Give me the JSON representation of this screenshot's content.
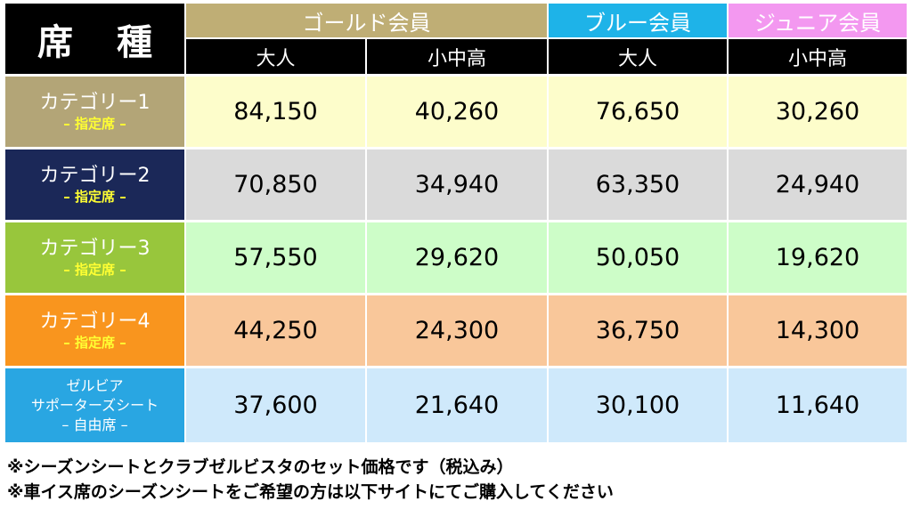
{
  "header": {
    "seat_label_1": "席",
    "seat_label_2": "種",
    "groups": [
      {
        "label": "ゴールド会員",
        "color": "#bfae75"
      },
      {
        "label": "ブルー会員",
        "color": "#1eb3e8"
      },
      {
        "label": "ジュニア会員",
        "color": "#f398f0"
      }
    ],
    "subheaders": [
      "大人",
      "小中高",
      "大人",
      "小中高"
    ]
  },
  "rows": [
    {
      "name": "カテゴリー1",
      "sub": "– 指定席 –",
      "cat_color": "#b3a577",
      "bg": "#fdfdcb",
      "values": [
        "84,150",
        "40,260",
        "76,650",
        "30,260"
      ]
    },
    {
      "name": "カテゴリー2",
      "sub": "– 指定席 –",
      "cat_color": "#1b2858",
      "bg": "#dadada",
      "values": [
        "70,850",
        "34,940",
        "63,350",
        "24,940"
      ]
    },
    {
      "name": "カテゴリー3",
      "sub": "– 指定席 –",
      "cat_color": "#98c63c",
      "bg": "#cdfdc8",
      "values": [
        "57,550",
        "29,620",
        "50,050",
        "19,620"
      ]
    },
    {
      "name": "カテゴリー4",
      "sub": "– 指定席 –",
      "cat_color": "#f9951e",
      "bg": "#f9c79a",
      "values": [
        "44,250",
        "24,300",
        "36,750",
        "14,300"
      ]
    },
    {
      "name_line1": "ゼルビア",
      "name_line2": "サポーターズシート",
      "name_line3": "– 自由席 –",
      "cat_color": "#29a6e2",
      "bg": "#cfe9fb",
      "values": [
        "37,600",
        "21,640",
        "30,100",
        "11,640"
      ]
    }
  ],
  "notes": [
    "※シーズンシートとクラブゼルビスタのセット価格です（税込み）",
    "※車イス席のシーズンシートをご希望の方は以下サイトにてご購入してください"
  ]
}
